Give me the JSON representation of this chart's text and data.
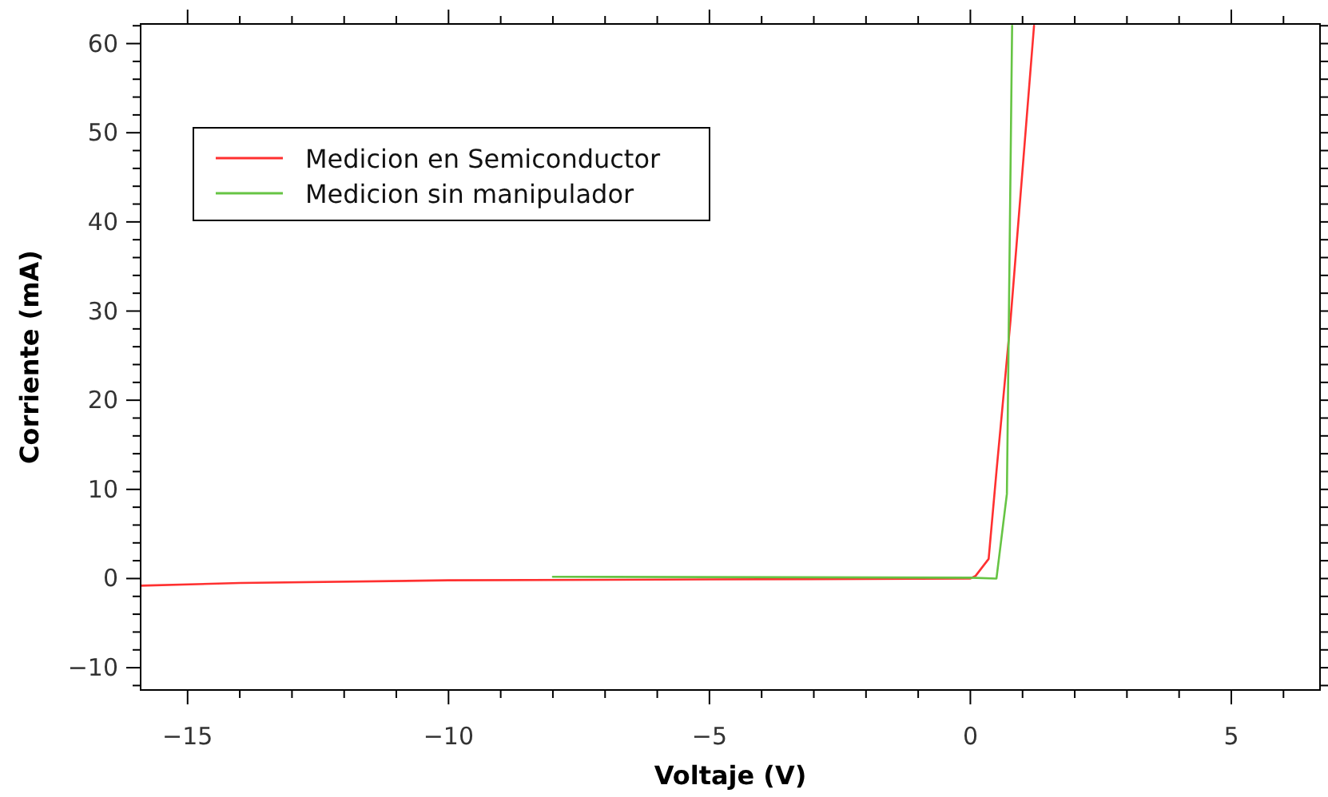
{
  "chart_data": {
    "type": "line",
    "xlabel": "Voltaje (V)",
    "ylabel": "Corriente (mA)",
    "xlim": [
      -15.9,
      6.7
    ],
    "ylim": [
      -12.5,
      62.2
    ],
    "xticks": [
      -15,
      {
        "value": -14,
        "label": null
      },
      {
        "value": -13,
        "label": null
      },
      {
        "value": -12,
        "label": null
      },
      {
        "value": -11,
        "label": null
      },
      -10,
      {
        "value": -9,
        "label": null
      },
      {
        "value": -8,
        "label": null
      },
      {
        "value": -7,
        "label": null
      },
      {
        "value": -6,
        "label": null
      },
      -5,
      {
        "value": -4,
        "label": null
      },
      {
        "value": -3,
        "label": null
      },
      {
        "value": -2,
        "label": null
      },
      {
        "value": -1,
        "label": null
      },
      0,
      {
        "value": 1,
        "label": null
      },
      {
        "value": 2,
        "label": null
      },
      {
        "value": 3,
        "label": null
      },
      {
        "value": 4,
        "label": null
      },
      5,
      {
        "value": 6,
        "label": null
      }
    ],
    "yticks": [
      {
        "value": -12,
        "label": null
      },
      -10,
      {
        "value": -8,
        "label": null
      },
      {
        "value": -6,
        "label": null
      },
      {
        "value": -4,
        "label": null
      },
      {
        "value": -2,
        "label": null
      },
      0,
      {
        "value": 2,
        "label": null
      },
      {
        "value": 4,
        "label": null
      },
      {
        "value": 6,
        "label": null
      },
      {
        "value": 8,
        "label": null
      },
      10,
      {
        "value": 12,
        "label": null
      },
      {
        "value": 14,
        "label": null
      },
      {
        "value": 16,
        "label": null
      },
      {
        "value": 18,
        "label": null
      },
      20,
      {
        "value": 22,
        "label": null
      },
      {
        "value": 24,
        "label": null
      },
      {
        "value": 26,
        "label": null
      },
      {
        "value": 28,
        "label": null
      },
      30,
      {
        "value": 32,
        "label": null
      },
      {
        "value": 34,
        "label": null
      },
      {
        "value": 36,
        "label": null
      },
      {
        "value": 38,
        "label": null
      },
      40,
      {
        "value": 42,
        "label": null
      },
      {
        "value": 44,
        "label": null
      },
      {
        "value": 46,
        "label": null
      },
      {
        "value": 48,
        "label": null
      },
      50,
      {
        "value": 52,
        "label": null
      },
      {
        "value": 54,
        "label": null
      },
      {
        "value": 56,
        "label": null
      },
      {
        "value": 58,
        "label": null
      },
      60,
      {
        "value": 62,
        "label": null
      }
    ],
    "grid": false,
    "legend": "top left",
    "line_style": "solid",
    "marker": "none",
    "series": [
      {
        "name": "Medicion en Semiconductor",
        "color": "#ff3030",
        "x": [
          -15.9,
          -14,
          -10,
          -5,
          0,
          0.1,
          0.35,
          0.5,
          0.77,
          1.22
        ],
        "values": [
          -0.8,
          -0.5,
          -0.2,
          -0.1,
          0,
          0.3,
          2.2,
          12,
          29,
          62
        ]
      },
      {
        "name": "Medicion sin manipulador",
        "color": "#66c444",
        "x": [
          -8,
          0,
          0.5,
          0.7,
          0.8
        ],
        "values": [
          0.2,
          0.1,
          0,
          9.5,
          62
        ]
      }
    ]
  }
}
